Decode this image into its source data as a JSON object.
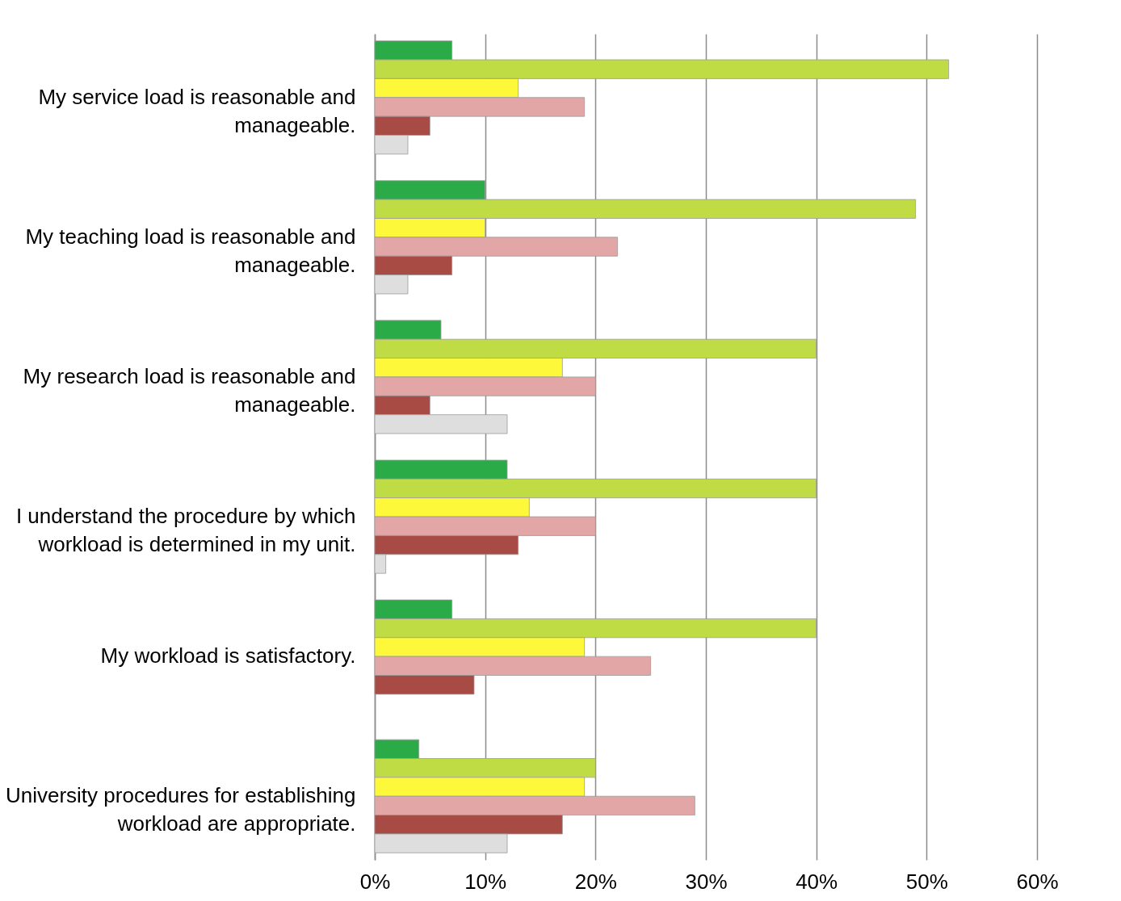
{
  "chart_data": {
    "type": "bar",
    "orientation": "horizontal",
    "categories": [
      "My service load is reasonable and manageable.",
      "My teaching load is reasonable and manageable.",
      "My research load is reasonable and manageable.",
      "I understand the procedure by which workload is determined in my unit.",
      "My workload is satisfactory.",
      "University procedures for establishing workload are appropriate."
    ],
    "series": [
      {
        "color": "#2aab48",
        "values": [
          7,
          10,
          6,
          12,
          7,
          4
        ]
      },
      {
        "color": "#c0dc44",
        "values": [
          52,
          49,
          40,
          40,
          40,
          20
        ]
      },
      {
        "color": "#fdf93a",
        "values": [
          13,
          10,
          17,
          14,
          19,
          19
        ]
      },
      {
        "color": "#e1a6a5",
        "values": [
          19,
          22,
          20,
          20,
          25,
          29
        ]
      },
      {
        "color": "#a84b45",
        "values": [
          5,
          7,
          5,
          13,
          9,
          17
        ]
      },
      {
        "color": "#dedede",
        "values": [
          3,
          3,
          12,
          1,
          null,
          12
        ]
      }
    ],
    "xlim": [
      0,
      60
    ],
    "xticks": [
      {
        "value": 0,
        "label": "0%"
      },
      {
        "value": 10,
        "label": "10%"
      },
      {
        "value": 20,
        "label": "20%"
      },
      {
        "value": 30,
        "label": "30%"
      },
      {
        "value": 40,
        "label": "40%"
      },
      {
        "value": 50,
        "label": "50%"
      },
      {
        "value": 60,
        "label": "60%"
      }
    ],
    "grid": "x"
  }
}
